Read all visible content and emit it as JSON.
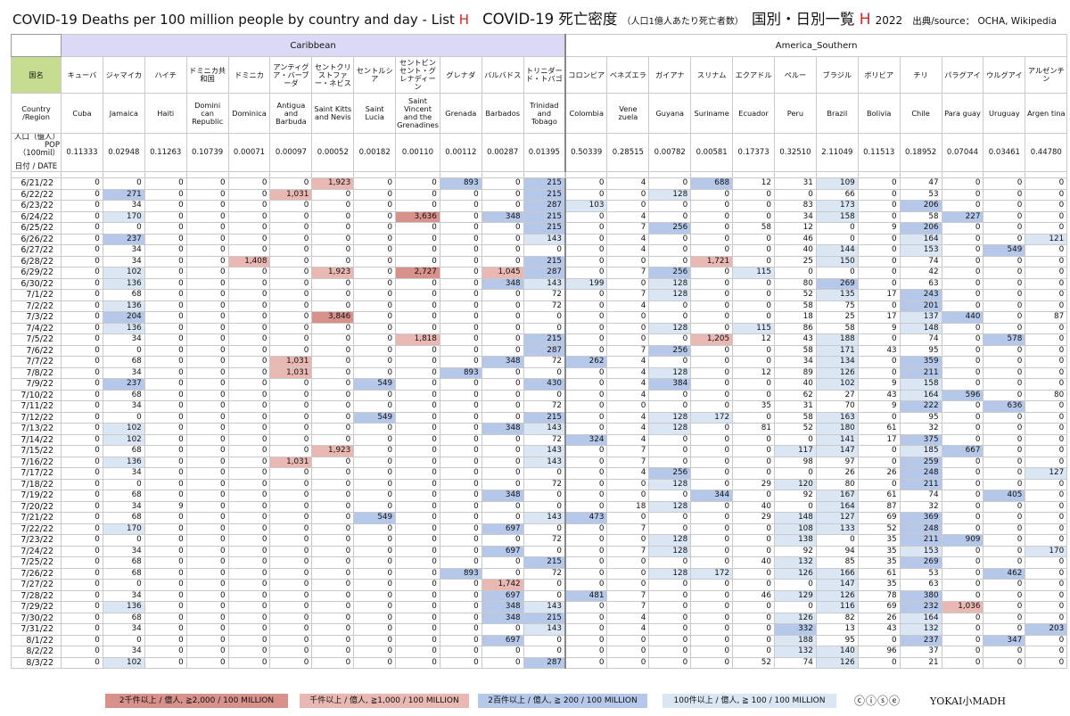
{
  "title": {
    "en": "COVID-19 Deaths per 100 million people by country and day - List ",
    "en_letter": "H",
    "jp": "COVID-19 死亡密度",
    "jp_small": "（人口1億人あたり死亡者数）",
    "jp2": "国別・日別一覧 ",
    "jp_letter": "H",
    "year": "2022",
    "source": "出典/source： OCHA, Wikipedia"
  },
  "regions": [
    {
      "name": "Caribbean",
      "span": 12
    },
    {
      "name": "America_Southern",
      "span": 12
    }
  ],
  "labels": {
    "jp": "国名",
    "en": "Country /Region",
    "pop": "人口（億人） POP（100mil）",
    "date": "日付 / DATE"
  },
  "countries": [
    {
      "jp": "キューバ",
      "en": "Cuba",
      "pop": "0.11333"
    },
    {
      "jp": "ジャマイカ",
      "en": "Jamaica",
      "pop": "0.02948"
    },
    {
      "jp": "ハイチ",
      "en": "Haiti",
      "pop": "0.11263"
    },
    {
      "jp": "ドミニカ共和国",
      "en": "Domini can Republic",
      "pop": "0.10739"
    },
    {
      "jp": "ドミニカ",
      "en": "Dominica",
      "pop": "0.00071"
    },
    {
      "jp": "アンティグア・バーブーダ",
      "en": "Antigua and Barbuda",
      "pop": "0.00097"
    },
    {
      "jp": "セントクリストファー・ネビス",
      "en": "Saint Kitts and Nevis",
      "pop": "0.00052"
    },
    {
      "jp": "セントルシア",
      "en": "Saint Lucia",
      "pop": "0.00182"
    },
    {
      "jp": "セントビンセント・グレナディーン",
      "en": "Saint Vincent and the Grenadines",
      "pop": "0.00110"
    },
    {
      "jp": "グレナダ",
      "en": "Grenada",
      "pop": "0.00112"
    },
    {
      "jp": "バルバドス",
      "en": "Barbados",
      "pop": "0.00287"
    },
    {
      "jp": "トリニダード・トバゴ",
      "en": "Trinidad and Tobago",
      "pop": "0.01395"
    },
    {
      "jp": "コロンビア",
      "en": "Colombia",
      "pop": "0.50339"
    },
    {
      "jp": "ベネズエラ",
      "en": "Vene zuela",
      "pop": "0.28515"
    },
    {
      "jp": "ガイアナ",
      "en": "Guyana",
      "pop": "0.00782"
    },
    {
      "jp": "スリナム",
      "en": "Suriname",
      "pop": "0.00581"
    },
    {
      "jp": "エクアドル",
      "en": "Ecuador",
      "pop": "0.17373"
    },
    {
      "jp": "ペルー",
      "en": "Peru",
      "pop": "0.32510"
    },
    {
      "jp": "ブラジル",
      "en": "Brazil",
      "pop": "2.11049"
    },
    {
      "jp": "ボリビア",
      "en": "Bolivia",
      "pop": "0.11513"
    },
    {
      "jp": "チリ",
      "en": "Chile",
      "pop": "0.18952"
    },
    {
      "jp": "パラグアイ",
      "en": "Para guay",
      "pop": "0.07044"
    },
    {
      "jp": "ウルグアイ",
      "en": "Uruguay",
      "pop": "0.03461"
    },
    {
      "jp": "アルゼンチン",
      "en": "Argen tina",
      "pop": "0.44780"
    }
  ],
  "rows": [
    {
      "date": "6/21/22",
      "v": [
        0,
        0,
        0,
        0,
        0,
        0,
        1923,
        0,
        0,
        893,
        0,
        215,
        0,
        4,
        0,
        688,
        12,
        31,
        109,
        0,
        47,
        0,
        0,
        0
      ]
    },
    {
      "date": "6/22/22",
      "v": [
        0,
        271,
        0,
        0,
        0,
        1031,
        0,
        0,
        0,
        0,
        0,
        215,
        0,
        0,
        128,
        0,
        0,
        0,
        66,
        0,
        53,
        0,
        0,
        0
      ]
    },
    {
      "date": "6/23/22",
      "v": [
        0,
        34,
        0,
        0,
        0,
        0,
        0,
        0,
        0,
        0,
        0,
        287,
        103,
        0,
        0,
        0,
        0,
        83,
        173,
        0,
        206,
        0,
        0,
        0
      ]
    },
    {
      "date": "6/24/22",
      "v": [
        0,
        170,
        0,
        0,
        0,
        0,
        0,
        0,
        3636,
        0,
        348,
        215,
        0,
        4,
        0,
        0,
        0,
        34,
        158,
        0,
        58,
        227,
        0,
        0
      ]
    },
    {
      "date": "6/25/22",
      "v": [
        0,
        0,
        0,
        0,
        0,
        0,
        0,
        0,
        0,
        0,
        0,
        215,
        0,
        7,
        256,
        0,
        58,
        12,
        0,
        9,
        206,
        0,
        0,
        0
      ]
    },
    {
      "date": "6/26/22",
      "v": [
        0,
        237,
        0,
        0,
        0,
        0,
        0,
        0,
        0,
        0,
        0,
        143,
        0,
        4,
        0,
        0,
        0,
        46,
        0,
        0,
        164,
        0,
        0,
        121
      ]
    },
    {
      "date": "6/27/22",
      "v": [
        0,
        34,
        0,
        0,
        0,
        0,
        0,
        0,
        0,
        0,
        0,
        0,
        0,
        4,
        0,
        0,
        0,
        40,
        144,
        0,
        153,
        0,
        549,
        0
      ]
    },
    {
      "date": "6/28/22",
      "v": [
        0,
        34,
        0,
        0,
        1408,
        0,
        0,
        0,
        0,
        0,
        0,
        215,
        0,
        0,
        0,
        1721,
        0,
        25,
        150,
        0,
        74,
        0,
        0,
        0
      ]
    },
    {
      "date": "6/29/22",
      "v": [
        0,
        102,
        0,
        0,
        0,
        0,
        1923,
        0,
        2727,
        0,
        1045,
        287,
        0,
        7,
        256,
        0,
        115,
        0,
        0,
        0,
        42,
        0,
        0,
        0
      ]
    },
    {
      "date": "6/30/22",
      "v": [
        0,
        136,
        0,
        0,
        0,
        0,
        0,
        0,
        0,
        0,
        348,
        143,
        199,
        0,
        128,
        0,
        0,
        80,
        269,
        0,
        63,
        0,
        0,
        0
      ]
    },
    {
      "date": "7/1/22",
      "v": [
        0,
        68,
        0,
        0,
        0,
        0,
        0,
        0,
        0,
        0,
        0,
        72,
        0,
        7,
        128,
        0,
        0,
        52,
        135,
        17,
        243,
        0,
        0,
        0
      ]
    },
    {
      "date": "7/2/22",
      "v": [
        0,
        136,
        0,
        0,
        0,
        0,
        0,
        0,
        0,
        0,
        0,
        72,
        0,
        4,
        0,
        0,
        0,
        58,
        75,
        0,
        201,
        0,
        0,
        0
      ]
    },
    {
      "date": "7/3/22",
      "v": [
        0,
        204,
        0,
        0,
        0,
        0,
        3846,
        0,
        0,
        0,
        0,
        0,
        0,
        0,
        0,
        0,
        0,
        18,
        25,
        17,
        137,
        440,
        0,
        87
      ]
    },
    {
      "date": "7/4/22",
      "v": [
        0,
        136,
        0,
        0,
        0,
        0,
        0,
        0,
        0,
        0,
        0,
        0,
        0,
        0,
        128,
        0,
        115,
        86,
        58,
        9,
        148,
        0,
        0,
        0
      ]
    },
    {
      "date": "7/5/22",
      "v": [
        0,
        34,
        0,
        0,
        0,
        0,
        0,
        0,
        1818,
        0,
        0,
        215,
        0,
        0,
        0,
        1205,
        12,
        43,
        188,
        0,
        74,
        0,
        578,
        0
      ]
    },
    {
      "date": "7/6/22",
      "v": [
        0,
        0,
        0,
        0,
        0,
        0,
        0,
        0,
        0,
        0,
        0,
        287,
        0,
        7,
        256,
        0,
        0,
        58,
        171,
        43,
        95,
        0,
        0,
        0
      ]
    },
    {
      "date": "7/7/22",
      "v": [
        0,
        68,
        0,
        0,
        0,
        1031,
        0,
        0,
        0,
        0,
        348,
        72,
        262,
        4,
        0,
        0,
        0,
        34,
        134,
        0,
        359,
        0,
        0,
        0
      ]
    },
    {
      "date": "7/8/22",
      "v": [
        0,
        34,
        0,
        0,
        0,
        1031,
        0,
        0,
        0,
        893,
        0,
        0,
        0,
        4,
        128,
        0,
        12,
        89,
        126,
        0,
        211,
        0,
        0,
        0
      ]
    },
    {
      "date": "7/9/22",
      "v": [
        0,
        237,
        0,
        0,
        0,
        0,
        0,
        549,
        0,
        0,
        0,
        430,
        0,
        4,
        384,
        0,
        0,
        40,
        102,
        9,
        158,
        0,
        0,
        0
      ]
    },
    {
      "date": "7/10/22",
      "v": [
        0,
        68,
        0,
        0,
        0,
        0,
        0,
        0,
        0,
        0,
        0,
        0,
        0,
        4,
        0,
        0,
        0,
        62,
        27,
        43,
        164,
        596,
        0,
        80
      ]
    },
    {
      "date": "7/11/22",
      "v": [
        0,
        34,
        0,
        0,
        0,
        0,
        0,
        0,
        0,
        0,
        0,
        72,
        0,
        0,
        0,
        0,
        35,
        31,
        70,
        9,
        222,
        0,
        636,
        0
      ]
    },
    {
      "date": "7/12/22",
      "v": [
        0,
        0,
        0,
        0,
        0,
        0,
        0,
        549,
        0,
        0,
        0,
        215,
        0,
        4,
        128,
        172,
        0,
        58,
        163,
        0,
        95,
        0,
        0,
        0
      ]
    },
    {
      "date": "7/13/22",
      "v": [
        0,
        102,
        0,
        0,
        0,
        0,
        0,
        0,
        0,
        0,
        348,
        143,
        0,
        4,
        128,
        0,
        81,
        52,
        180,
        61,
        32,
        0,
        0,
        0
      ]
    },
    {
      "date": "7/14/22",
      "v": [
        0,
        102,
        0,
        0,
        0,
        0,
        0,
        0,
        0,
        0,
        0,
        72,
        324,
        4,
        0,
        0,
        0,
        0,
        141,
        17,
        375,
        0,
        0,
        0
      ]
    },
    {
      "date": "7/15/22",
      "v": [
        0,
        68,
        0,
        0,
        0,
        0,
        1923,
        0,
        0,
        0,
        0,
        143,
        0,
        7,
        0,
        0,
        0,
        117,
        147,
        0,
        185,
        667,
        0,
        0
      ]
    },
    {
      "date": "7/16/22",
      "v": [
        0,
        136,
        0,
        0,
        0,
        1031,
        0,
        0,
        0,
        0,
        0,
        143,
        0,
        7,
        0,
        0,
        0,
        98,
        97,
        0,
        259,
        0,
        0,
        0
      ]
    },
    {
      "date": "7/17/22",
      "v": [
        0,
        34,
        0,
        0,
        0,
        0,
        0,
        0,
        0,
        0,
        0,
        0,
        0,
        4,
        256,
        0,
        0,
        0,
        26,
        26,
        248,
        0,
        0,
        127
      ]
    },
    {
      "date": "7/18/22",
      "v": [
        0,
        0,
        0,
        0,
        0,
        0,
        0,
        0,
        0,
        0,
        0,
        72,
        0,
        0,
        128,
        0,
        29,
        120,
        80,
        0,
        211,
        0,
        0,
        0
      ]
    },
    {
      "date": "7/19/22",
      "v": [
        0,
        68,
        0,
        0,
        0,
        0,
        0,
        0,
        0,
        0,
        348,
        0,
        0,
        0,
        0,
        344,
        0,
        92,
        167,
        61,
        74,
        0,
        405,
        0
      ]
    },
    {
      "date": "7/20/22",
      "v": [
        0,
        34,
        9,
        0,
        0,
        0,
        0,
        0,
        0,
        0,
        0,
        0,
        0,
        18,
        128,
        0,
        40,
        0,
        164,
        87,
        32,
        0,
        0,
        0
      ]
    },
    {
      "date": "7/21/22",
      "v": [
        0,
        68,
        0,
        0,
        0,
        0,
        0,
        549,
        0,
        0,
        0,
        143,
        473,
        0,
        0,
        0,
        29,
        148,
        127,
        69,
        369,
        0,
        0,
        0
      ]
    },
    {
      "date": "7/22/22",
      "v": [
        0,
        170,
        0,
        0,
        0,
        0,
        0,
        0,
        0,
        0,
        697,
        0,
        0,
        7,
        0,
        0,
        0,
        108,
        133,
        52,
        248,
        0,
        0,
        0
      ]
    },
    {
      "date": "7/23/22",
      "v": [
        0,
        0,
        0,
        0,
        0,
        0,
        0,
        0,
        0,
        0,
        0,
        72,
        0,
        0,
        128,
        0,
        0,
        138,
        0,
        35,
        211,
        909,
        0,
        0
      ]
    },
    {
      "date": "7/24/22",
      "v": [
        0,
        34,
        0,
        0,
        0,
        0,
        0,
        0,
        0,
        0,
        697,
        0,
        0,
        7,
        128,
        0,
        0,
        92,
        94,
        35,
        153,
        0,
        0,
        170
      ]
    },
    {
      "date": "7/25/22",
      "v": [
        0,
        68,
        0,
        0,
        0,
        0,
        0,
        0,
        0,
        0,
        0,
        215,
        0,
        0,
        0,
        0,
        40,
        132,
        85,
        35,
        269,
        0,
        0,
        0
      ]
    },
    {
      "date": "7/26/22",
      "v": [
        0,
        68,
        0,
        0,
        0,
        0,
        0,
        0,
        0,
        893,
        0,
        72,
        0,
        0,
        128,
        172,
        0,
        126,
        166,
        61,
        53,
        0,
        462,
        0
      ]
    },
    {
      "date": "7/27/22",
      "v": [
        0,
        0,
        0,
        0,
        0,
        0,
        0,
        0,
        0,
        0,
        1742,
        0,
        0,
        0,
        0,
        0,
        0,
        0,
        147,
        35,
        63,
        0,
        0,
        0
      ]
    },
    {
      "date": "7/28/22",
      "v": [
        0,
        34,
        0,
        0,
        0,
        0,
        0,
        0,
        0,
        0,
        697,
        0,
        481,
        7,
        0,
        0,
        46,
        129,
        126,
        78,
        380,
        0,
        0,
        0
      ]
    },
    {
      "date": "7/29/22",
      "v": [
        0,
        136,
        0,
        0,
        0,
        0,
        0,
        0,
        0,
        0,
        348,
        143,
        0,
        7,
        0,
        0,
        0,
        0,
        116,
        69,
        232,
        1036,
        0,
        0
      ]
    },
    {
      "date": "7/30/22",
      "v": [
        0,
        68,
        0,
        0,
        0,
        0,
        0,
        0,
        0,
        0,
        348,
        215,
        0,
        4,
        0,
        0,
        0,
        126,
        82,
        26,
        164,
        0,
        0,
        0
      ]
    },
    {
      "date": "7/31/22",
      "v": [
        0,
        34,
        0,
        0,
        0,
        0,
        0,
        0,
        0,
        0,
        0,
        143,
        0,
        4,
        0,
        0,
        0,
        332,
        13,
        43,
        132,
        0,
        0,
        203
      ]
    },
    {
      "date": "8/1/22",
      "v": [
        0,
        0,
        0,
        0,
        0,
        0,
        0,
        0,
        0,
        0,
        697,
        0,
        0,
        0,
        0,
        0,
        0,
        188,
        95,
        0,
        237,
        0,
        347,
        0
      ]
    },
    {
      "date": "8/2/22",
      "v": [
        0,
        34,
        0,
        0,
        0,
        0,
        0,
        0,
        0,
        0,
        0,
        0,
        0,
        0,
        0,
        0,
        0,
        132,
        140,
        96,
        37,
        0,
        0,
        0
      ]
    },
    {
      "date": "8/3/22",
      "v": [
        0,
        102,
        0,
        0,
        0,
        0,
        0,
        0,
        0,
        0,
        0,
        287,
        0,
        0,
        0,
        0,
        52,
        74,
        126,
        0,
        21,
        0,
        0,
        0
      ]
    }
  ],
  "legend": [
    {
      "text": "2千件以上 / 億人, ≧2,000 / 100 MILLION",
      "color": "#d9918b"
    },
    {
      "text": "千件以上 / 億人, ≧1,000 / 100 MILLION",
      "color": "#eab8b3"
    },
    {
      "text": "2百件以上 / 億人, ≧ 200 / 100 MILLION",
      "color": "#b6c8ea"
    },
    {
      "text": "100件以上 / 億人, ≧ 100 / 100 MILLION",
      "color": "#dbe6f5"
    }
  ],
  "license": "ⓒⓘⓢⓔ",
  "brand": "YOKAI小MADH"
}
